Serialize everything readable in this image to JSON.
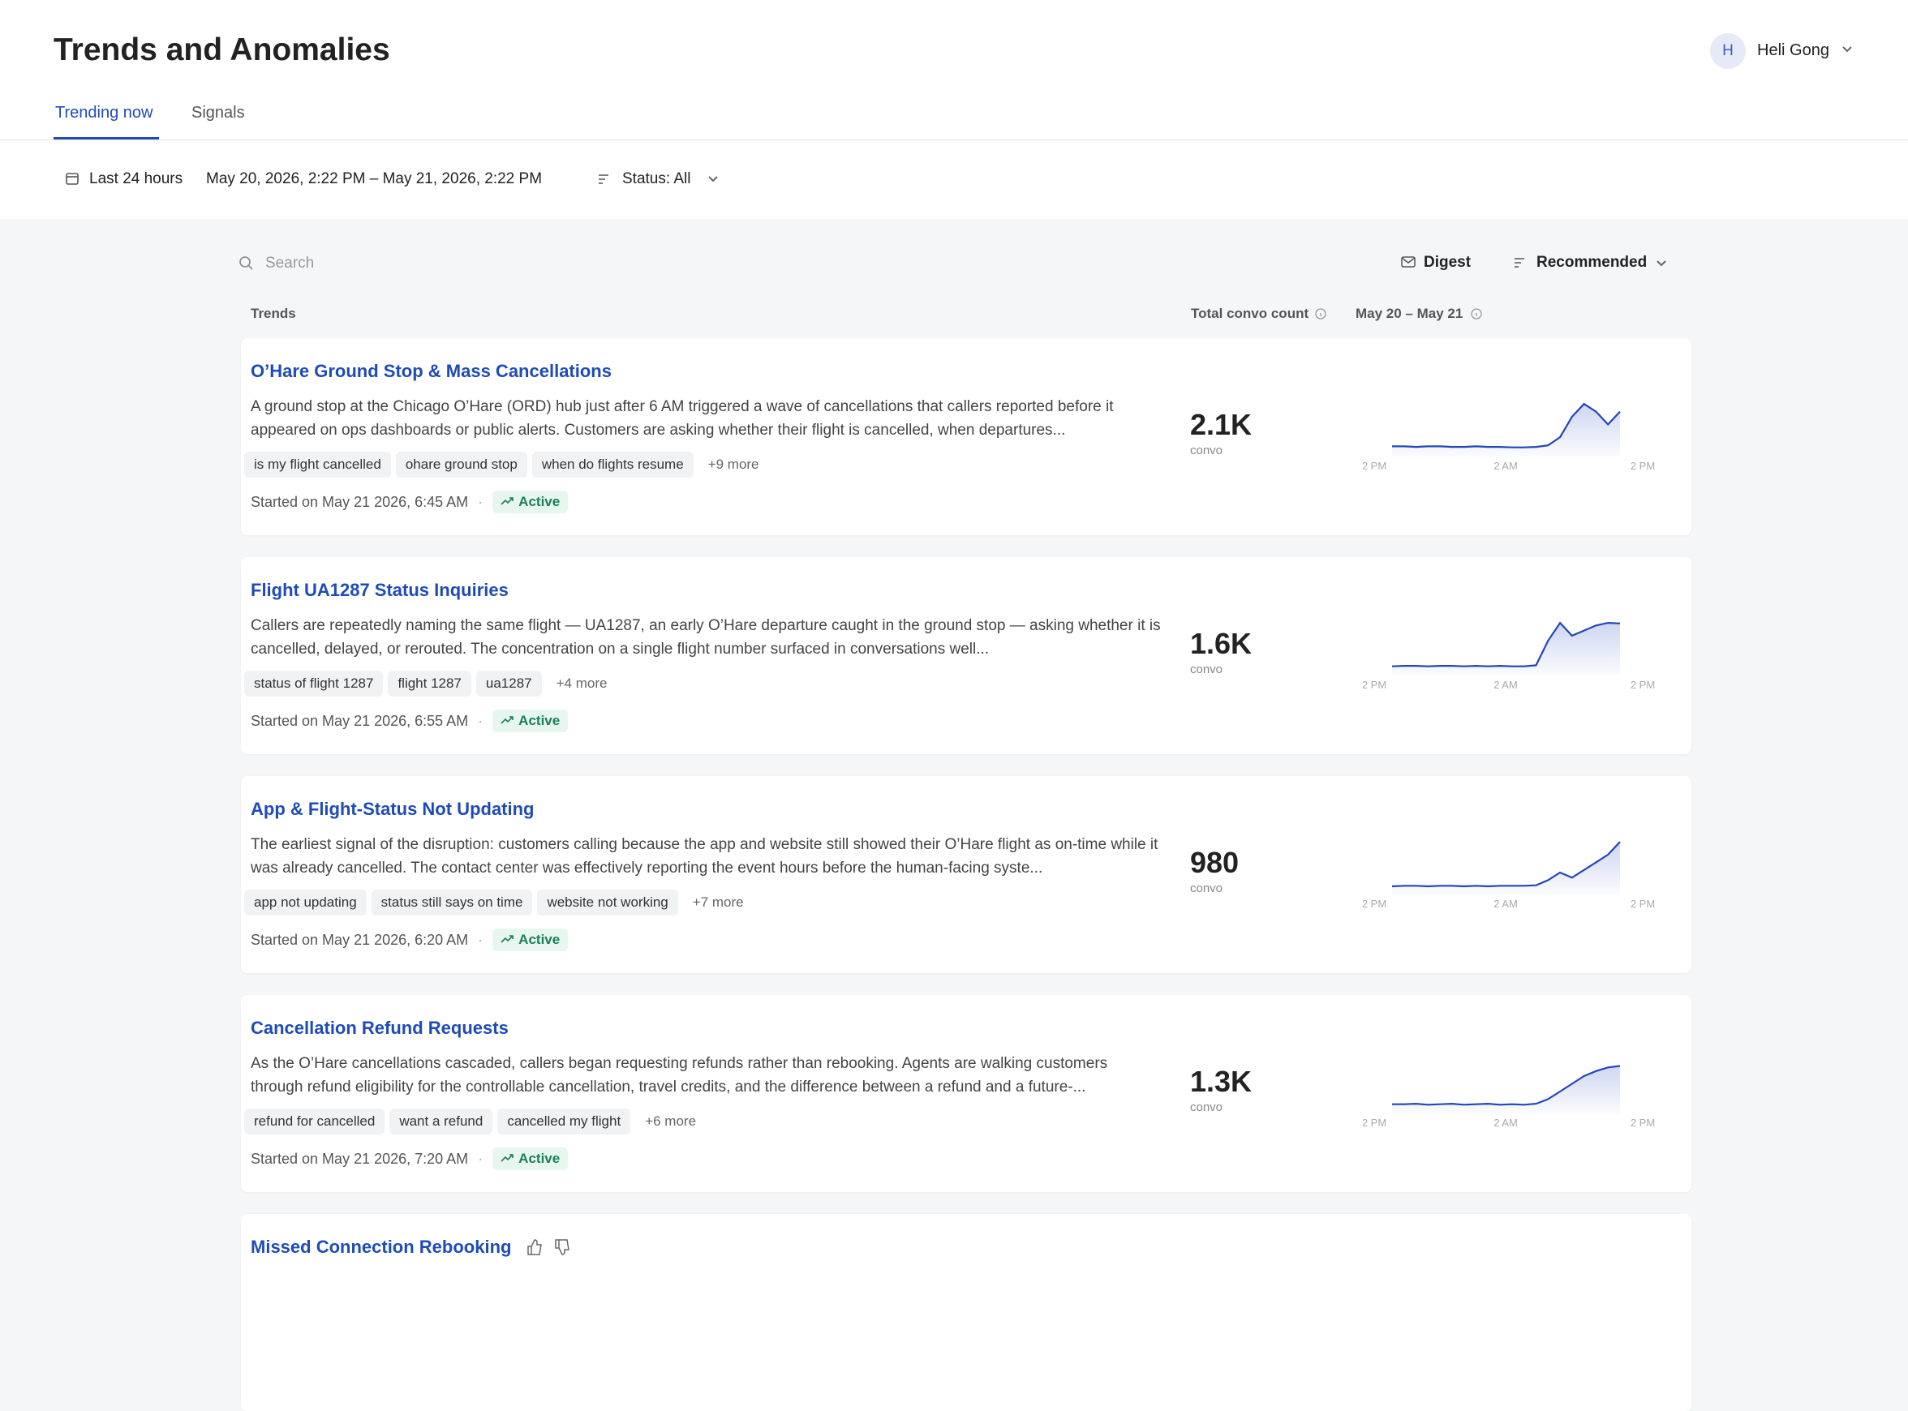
{
  "header": {
    "title": "Trends and Anomalies",
    "user": {
      "initial": "H",
      "name": "Heli Gong"
    }
  },
  "tabs": [
    "Trending now",
    "Signals"
  ],
  "filters": {
    "range": "Last 24 hours",
    "dates": "May 20, 2026, 2:22 PM – May 21, 2026, 2:22 PM",
    "status": "Status: All"
  },
  "toolbar": {
    "search_placeholder": "Search",
    "digest": "Digest",
    "sort": "Recommended"
  },
  "table_header": {
    "trends": "Trends",
    "count": "Total convo count",
    "range": "May 20 – May 21"
  },
  "trends": [
    {
      "title": "O’Hare Ground Stop & Mass Cancellations",
      "description": "A ground stop at the Chicago O’Hare (ORD) hub just after 6 AM triggered a wave of cancellations that callers reported before it appeared on ops dashboards or public alerts. Customers are asking whether their flight is cancelled, when departures...",
      "tags": [
        "is my flight cancelled",
        "ohare ground stop",
        "when do flights resume",
        "+9 more"
      ],
      "started": "Started on May 21 2026, 6:45 AM",
      "status": "Active",
      "count": "2.1K",
      "unit": "convo",
      "axis": [
        "2 PM",
        "2 AM",
        "2 PM"
      ],
      "sparkline": [
        12,
        12,
        11,
        12,
        12,
        11,
        11,
        12,
        11,
        11,
        10,
        10,
        11,
        14,
        30,
        70,
        95,
        80,
        55,
        80
      ]
    },
    {
      "title": "Flight UA1287 Status Inquiries",
      "description": "Callers are repeatedly naming the same flight — UA1287, an early O’Hare departure caught in the ground stop — asking whether it is cancelled, delayed, or rerouted. The concentration on a single flight number surfaced in conversations well...",
      "tags": [
        "status of flight 1287",
        "flight 1287",
        "ua1287",
        "+4 more"
      ],
      "started": "Started on May 21 2026, 6:55 AM",
      "status": "Active",
      "count": "1.6K",
      "unit": "convo",
      "axis": [
        "2 PM",
        "2 AM",
        "2 PM"
      ],
      "sparkline": [
        10,
        11,
        11,
        10,
        11,
        11,
        10,
        11,
        10,
        11,
        10,
        10,
        12,
        60,
        95,
        70,
        80,
        90,
        95,
        94
      ]
    },
    {
      "title": "App & Flight-Status Not Updating",
      "description": "The earliest signal of the disruption: customers calling because the app and website still showed their O’Hare flight as on-time while it was already cancelled. The contact center was effectively reporting the event hours before the human-facing syste...",
      "tags": [
        "app not updating",
        "status still says on time",
        "website not working",
        "+7 more"
      ],
      "started": "Started on May 21 2026, 6:20 AM",
      "status": "Active",
      "count": "980",
      "unit": "convo",
      "axis": [
        "2 PM",
        "2 AM",
        "2 PM"
      ],
      "sparkline": [
        8,
        9,
        9,
        8,
        9,
        9,
        8,
        9,
        8,
        9,
        9,
        9,
        10,
        20,
        35,
        25,
        40,
        55,
        70,
        95
      ]
    },
    {
      "title": "Cancellation Refund Requests",
      "description": "As the O’Hare cancellations cascaded, callers began requesting refunds rather than rebooking. Agents are walking customers through refund eligibility for the controllable cancellation, travel credits, and the difference between a refund and a future-...",
      "tags": [
        "refund for cancelled",
        "want a refund",
        "cancelled my flight",
        "+6 more"
      ],
      "started": "Started on May 21 2026, 7:20 AM",
      "status": "Active",
      "count": "1.3K",
      "unit": "convo",
      "axis": [
        "2 PM",
        "2 AM",
        "2 PM"
      ],
      "sparkline": [
        10,
        10,
        11,
        9,
        10,
        11,
        9,
        10,
        11,
        9,
        10,
        9,
        11,
        20,
        35,
        50,
        65,
        75,
        82,
        85
      ]
    },
    {
      "title": "Missed Connection Rebooking"
    }
  ]
}
